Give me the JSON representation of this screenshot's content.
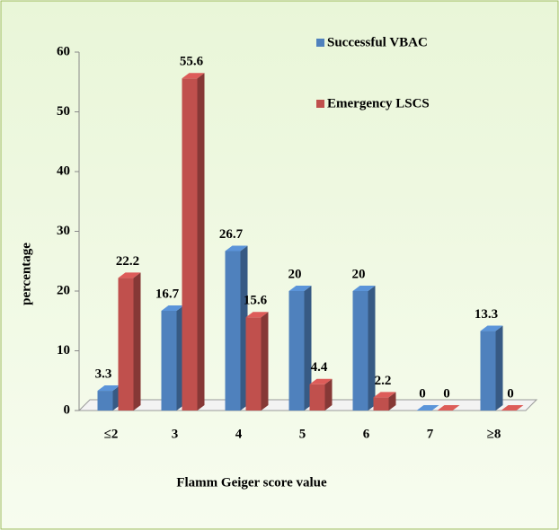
{
  "chart_data": {
    "type": "bar3d",
    "categories": [
      "≤2",
      "3",
      "4",
      "5",
      "6",
      "7",
      "≥8"
    ],
    "series": [
      {
        "name": "Successful VBAC",
        "color": "#4f81bd",
        "values": [
          3.3,
          16.7,
          26.7,
          20,
          20,
          0,
          13.3
        ]
      },
      {
        "name": "Emergency LSCS",
        "color": "#c0504d",
        "values": [
          22.2,
          55.6,
          15.6,
          4.4,
          2.2,
          0,
          0
        ]
      }
    ],
    "xlabel": "Flamm Geiger score value",
    "ylabel": "percentage",
    "ylim": [
      0,
      60
    ],
    "yticks": [
      0,
      10,
      20,
      30,
      40,
      50,
      60
    ],
    "legend": "top-right"
  }
}
